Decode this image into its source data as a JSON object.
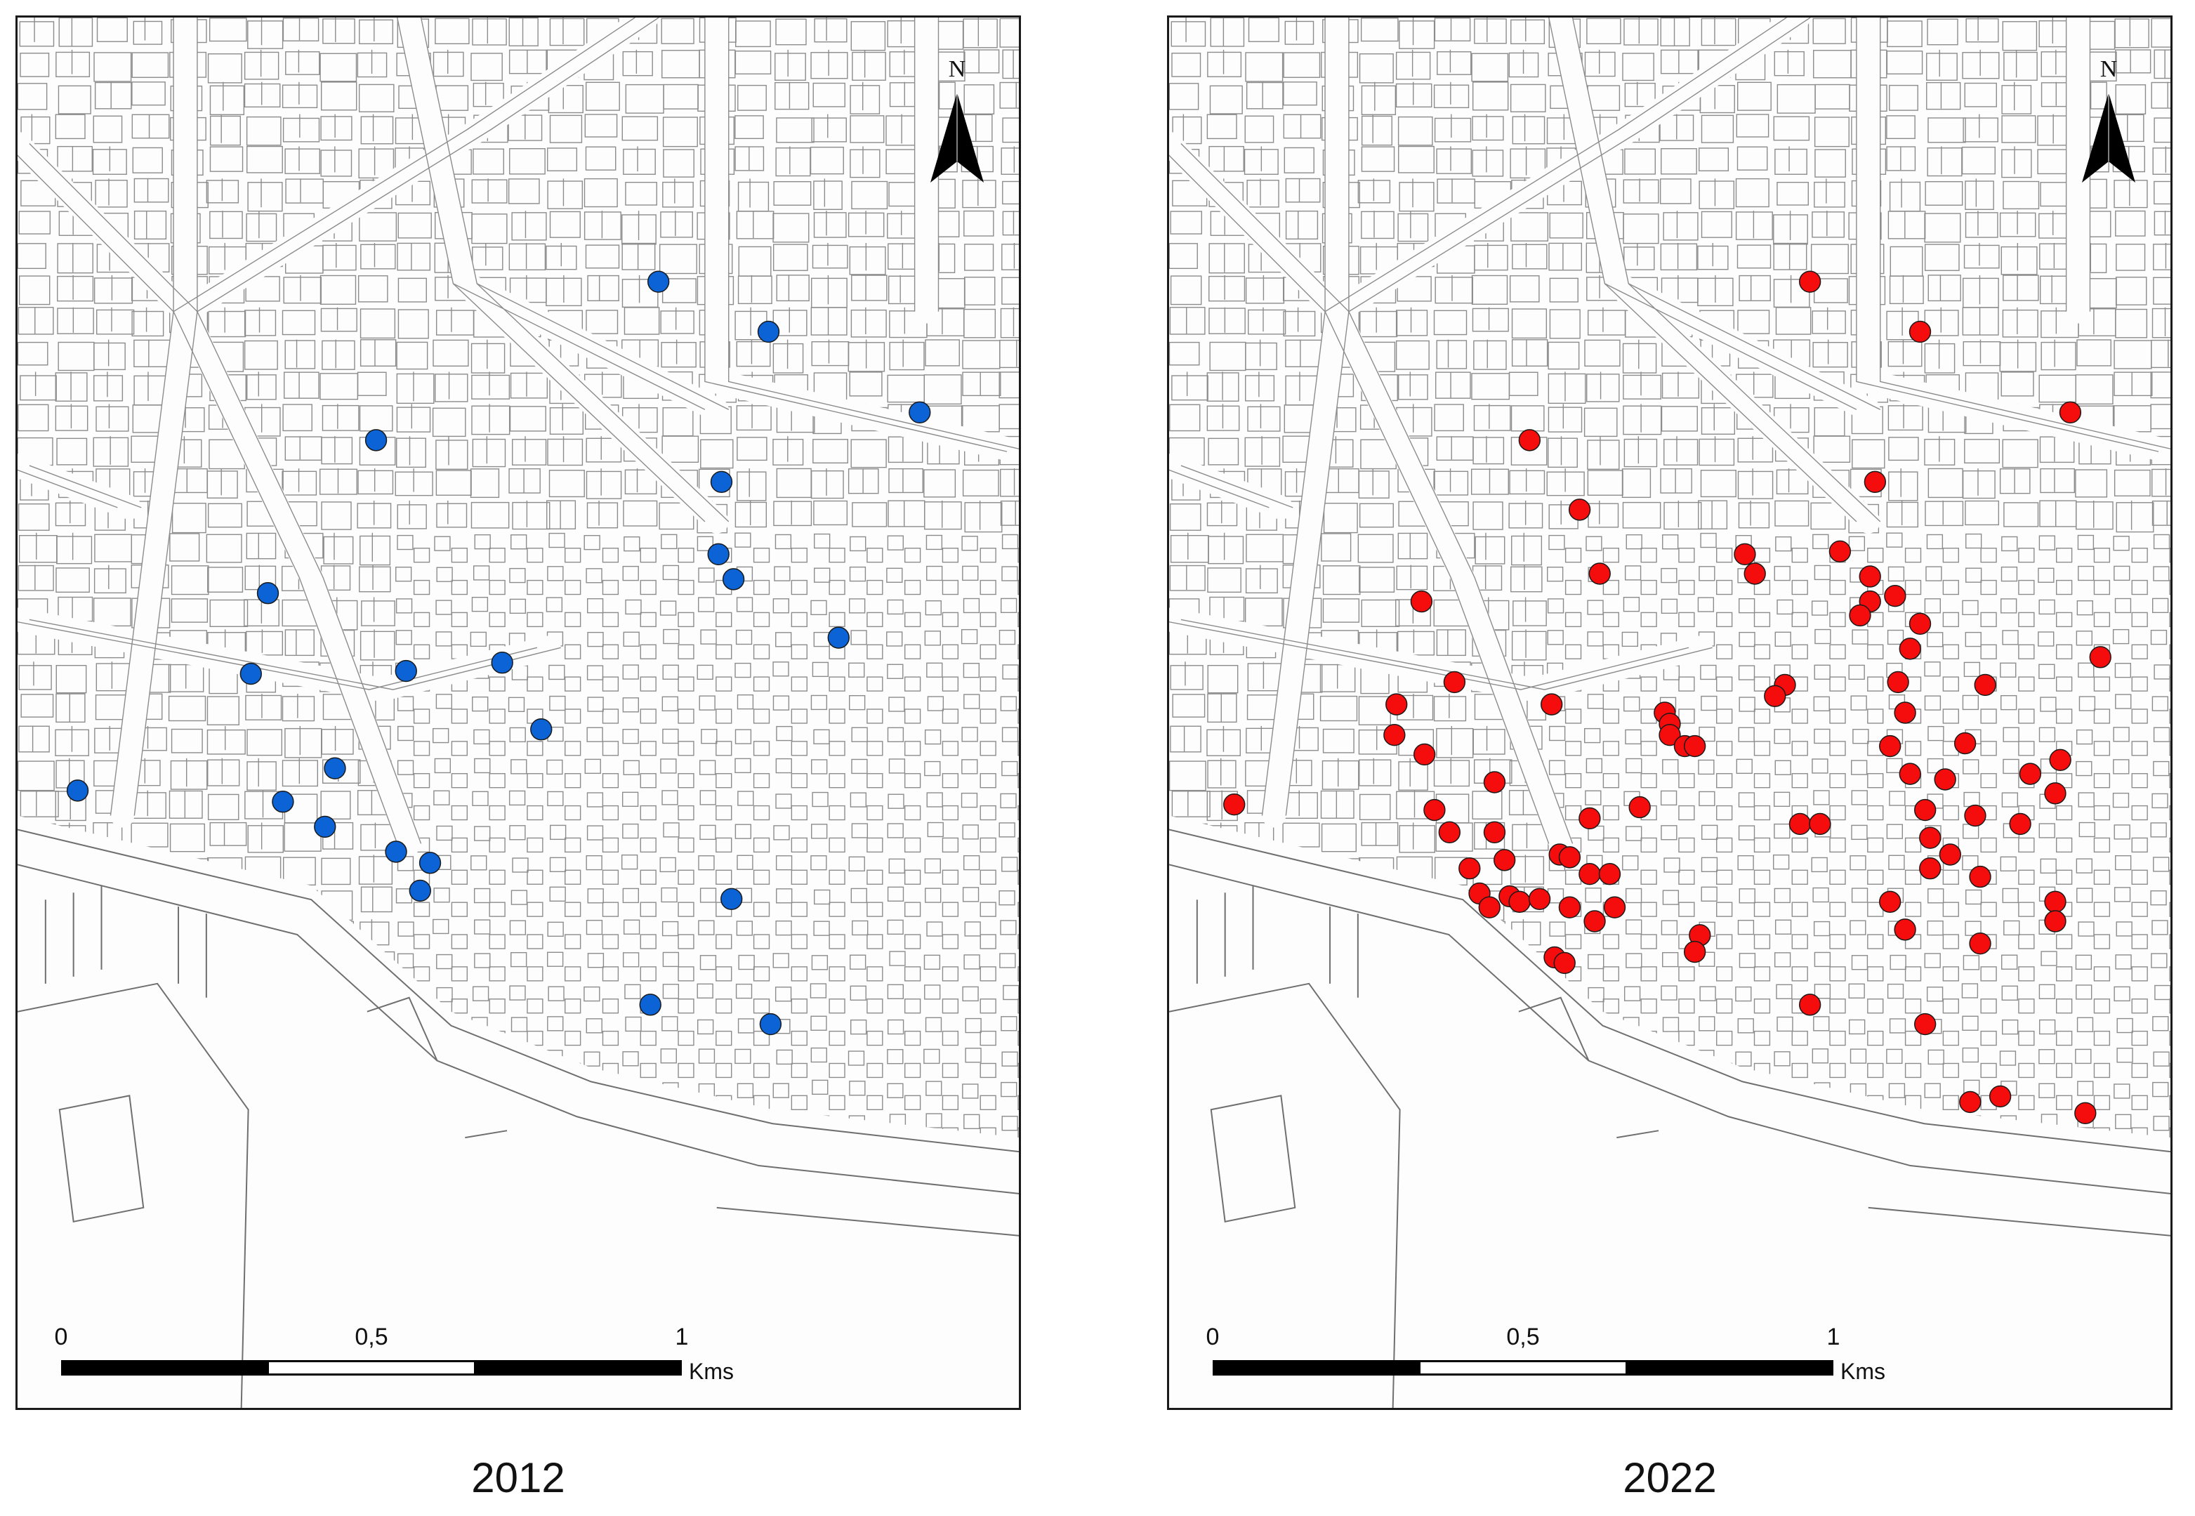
{
  "maps": [
    {
      "year": "2012",
      "marker_color": "#0b63d6",
      "north_label": "N",
      "scale": {
        "ticks": [
          "0",
          "0,5",
          "1"
        ],
        "unit": "Kms"
      },
      "points": [
        [
          0.64,
          0.095
        ],
        [
          0.75,
          0.113
        ],
        [
          0.901,
          0.142
        ],
        [
          0.358,
          0.152
        ],
        [
          0.703,
          0.167
        ],
        [
          0.7,
          0.193
        ],
        [
          0.715,
          0.202
        ],
        [
          0.25,
          0.207
        ],
        [
          0.82,
          0.223
        ],
        [
          0.233,
          0.236
        ],
        [
          0.388,
          0.235
        ],
        [
          0.484,
          0.232
        ],
        [
          0.523,
          0.256
        ],
        [
          0.317,
          0.27
        ],
        [
          0.06,
          0.278
        ],
        [
          0.265,
          0.282
        ],
        [
          0.307,
          0.291
        ],
        [
          0.378,
          0.3
        ],
        [
          0.412,
          0.304
        ],
        [
          0.402,
          0.314
        ],
        [
          0.713,
          0.317
        ],
        [
          0.632,
          0.355
        ],
        [
          0.752,
          0.362
        ]
      ]
    },
    {
      "year": "2022",
      "marker_color": "#f50c0c",
      "north_label": "N",
      "scale": {
        "ticks": [
          "0",
          "0,5",
          "1"
        ],
        "unit": "Kms"
      },
      "points": [
        [
          0.64,
          0.095
        ],
        [
          0.75,
          0.113
        ],
        [
          0.9,
          0.142
        ],
        [
          0.36,
          0.152
        ],
        [
          0.705,
          0.167
        ],
        [
          0.41,
          0.177
        ],
        [
          0.67,
          0.192
        ],
        [
          0.7,
          0.201
        ],
        [
          0.725,
          0.208
        ],
        [
          0.575,
          0.193
        ],
        [
          0.585,
          0.2
        ],
        [
          0.43,
          0.2
        ],
        [
          0.7,
          0.21
        ],
        [
          0.69,
          0.215
        ],
        [
          0.75,
          0.218
        ],
        [
          0.252,
          0.21
        ],
        [
          0.74,
          0.227
        ],
        [
          0.93,
          0.23
        ],
        [
          0.285,
          0.239
        ],
        [
          0.615,
          0.24
        ],
        [
          0.605,
          0.244
        ],
        [
          0.495,
          0.25
        ],
        [
          0.5,
          0.254
        ],
        [
          0.728,
          0.239
        ],
        [
          0.815,
          0.24
        ],
        [
          0.227,
          0.247
        ],
        [
          0.382,
          0.247
        ],
        [
          0.735,
          0.25
        ],
        [
          0.225,
          0.258
        ],
        [
          0.5,
          0.258
        ],
        [
          0.515,
          0.262
        ],
        [
          0.525,
          0.262
        ],
        [
          0.72,
          0.262
        ],
        [
          0.795,
          0.261
        ],
        [
          0.89,
          0.267
        ],
        [
          0.255,
          0.265
        ],
        [
          0.325,
          0.275
        ],
        [
          0.74,
          0.272
        ],
        [
          0.775,
          0.274
        ],
        [
          0.86,
          0.272
        ],
        [
          0.885,
          0.279
        ],
        [
          0.065,
          0.283
        ],
        [
          0.265,
          0.285
        ],
        [
          0.42,
          0.288
        ],
        [
          0.47,
          0.284
        ],
        [
          0.755,
          0.285
        ],
        [
          0.805,
          0.287
        ],
        [
          0.28,
          0.293
        ],
        [
          0.325,
          0.293
        ],
        [
          0.63,
          0.29
        ],
        [
          0.65,
          0.29
        ],
        [
          0.76,
          0.295
        ],
        [
          0.85,
          0.29
        ],
        [
          0.78,
          0.301
        ],
        [
          0.76,
          0.306
        ],
        [
          0.81,
          0.309
        ],
        [
          0.335,
          0.303
        ],
        [
          0.3,
          0.306
        ],
        [
          0.39,
          0.301
        ],
        [
          0.4,
          0.302
        ],
        [
          0.42,
          0.308
        ],
        [
          0.44,
          0.308
        ],
        [
          0.31,
          0.315
        ],
        [
          0.32,
          0.32
        ],
        [
          0.34,
          0.316
        ],
        [
          0.35,
          0.318
        ],
        [
          0.4,
          0.32
        ],
        [
          0.425,
          0.325
        ],
        [
          0.37,
          0.317
        ],
        [
          0.445,
          0.32
        ],
        [
          0.72,
          0.318
        ],
        [
          0.885,
          0.318
        ],
        [
          0.885,
          0.325
        ],
        [
          0.735,
          0.328
        ],
        [
          0.81,
          0.333
        ],
        [
          0.53,
          0.33
        ],
        [
          0.525,
          0.336
        ],
        [
          0.385,
          0.338
        ],
        [
          0.395,
          0.34
        ],
        [
          0.64,
          0.355
        ],
        [
          0.755,
          0.362
        ],
        [
          0.8,
          0.39
        ],
        [
          0.83,
          0.388
        ],
        [
          0.915,
          0.394
        ]
      ]
    }
  ],
  "base_map": {
    "background": "#fdfdfd",
    "street_block_stroke": "#8c8c8c",
    "coastline_stroke": "#6f6f6f"
  }
}
